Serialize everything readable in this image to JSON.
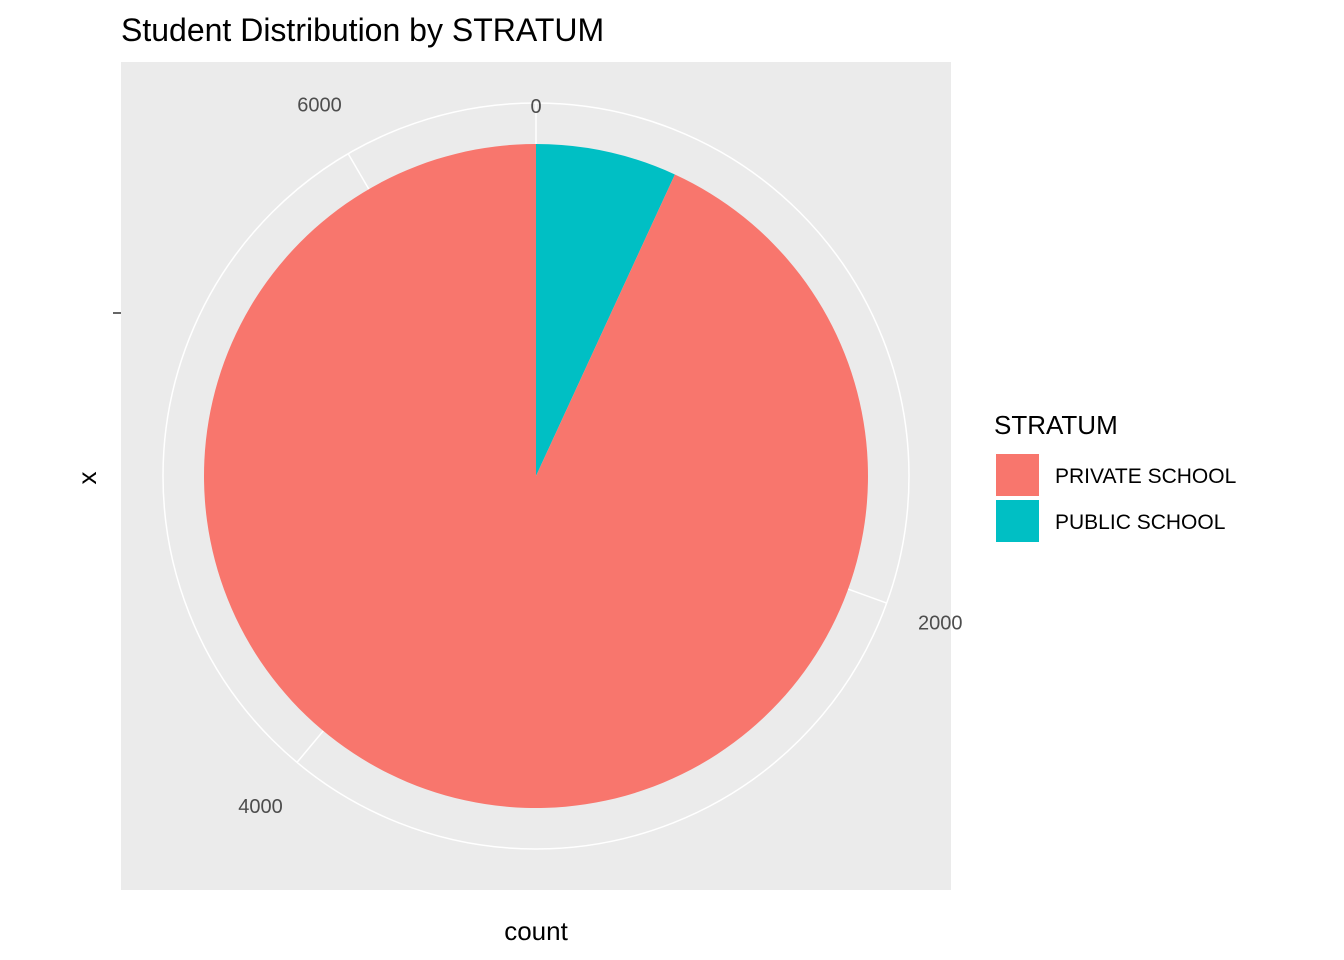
{
  "chart_data": {
    "type": "pie",
    "title": "Student Distribution by STRATUM",
    "xlabel": "count",
    "ylabel": "x",
    "angle_ticks": [
      "0",
      "2000",
      "4000",
      "6000"
    ],
    "angle_tick_values": [
      0,
      2000,
      4000,
      6000
    ],
    "total": 6550,
    "slices": [
      {
        "name": "PUBLIC SCHOOL",
        "value": 450,
        "color": "#00BFC4"
      },
      {
        "name": "PRIVATE SCHOOL",
        "value": 6100,
        "color": "#F8766D"
      }
    ],
    "legend": {
      "title": "STRATUM",
      "entries": [
        {
          "label": "PRIVATE SCHOOL",
          "color": "#F8766D"
        },
        {
          "label": "PUBLIC SCHOOL",
          "color": "#00BFC4"
        }
      ],
      "placement": "right"
    },
    "panel_background": "#EBEBEB",
    "grid": true
  }
}
